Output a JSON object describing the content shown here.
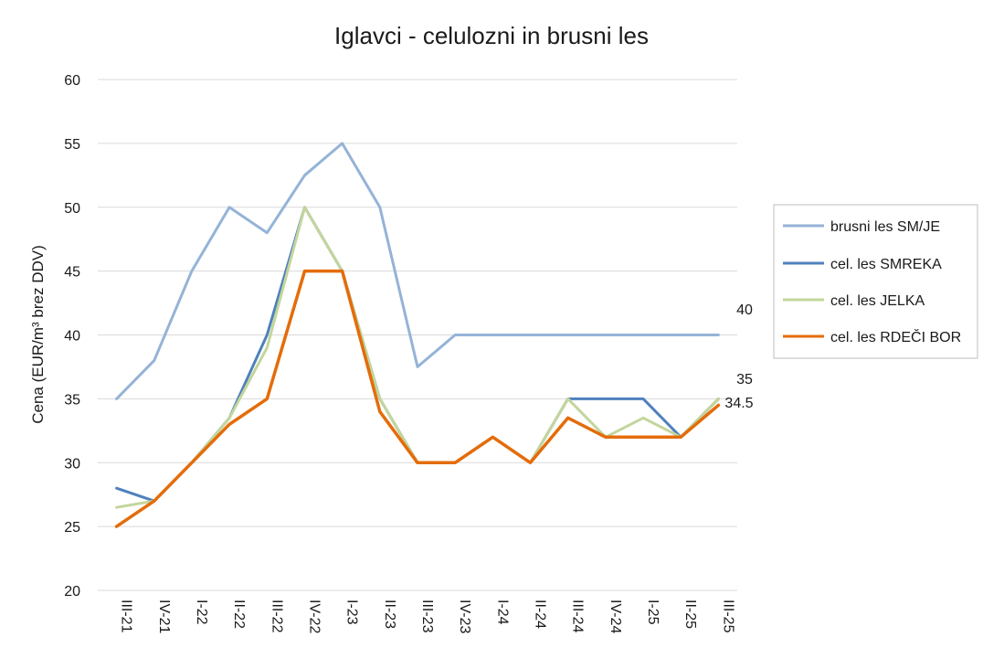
{
  "chart_data": {
    "type": "line",
    "title": "Iglavci - celulozni in brusni les",
    "ylabel": "Cena (EUR/m³ brez DDV)",
    "ylim": [
      20,
      60
    ],
    "yticks": [
      20,
      25,
      30,
      35,
      40,
      45,
      50,
      55,
      60
    ],
    "grid": true,
    "legend_position": "right",
    "categories": [
      "III-21",
      "IV-21",
      "I-22",
      "II-22",
      "III-22",
      "IV-22",
      "I-23",
      "II-23",
      "III-23",
      "IV-23",
      "I-24",
      "II-24",
      "III-24",
      "IV-24",
      "I-25",
      "II-25",
      "III-25"
    ],
    "series": [
      {
        "name": "brusni les SM/JE",
        "color": "#95b3d7",
        "values": [
          35,
          38,
          45,
          50,
          48,
          52.5,
          55,
          50,
          37.5,
          40,
          40,
          40,
          40,
          40,
          40,
          40,
          40
        ]
      },
      {
        "name": "cel. les SMREKA",
        "color": "#4f81bd",
        "values": [
          28,
          27,
          30,
          33.5,
          40,
          50,
          45,
          35,
          30,
          30,
          32,
          30,
          35,
          35,
          35,
          32,
          35
        ]
      },
      {
        "name": "cel. les JELKA",
        "color": "#c3d69b",
        "values": [
          26.5,
          27,
          30,
          33.5,
          39,
          50,
          45,
          35,
          30,
          30,
          32,
          30,
          35,
          32,
          33.5,
          32,
          35
        ]
      },
      {
        "name": "cel. les RDEČI BOR",
        "color": "#e46c0a",
        "values": [
          25,
          27,
          30,
          33,
          35,
          45,
          45,
          34,
          30,
          30,
          32,
          30,
          33.5,
          32,
          32,
          32,
          34.5
        ]
      }
    ],
    "data_labels": [
      "40",
      "35",
      "34.5"
    ]
  }
}
